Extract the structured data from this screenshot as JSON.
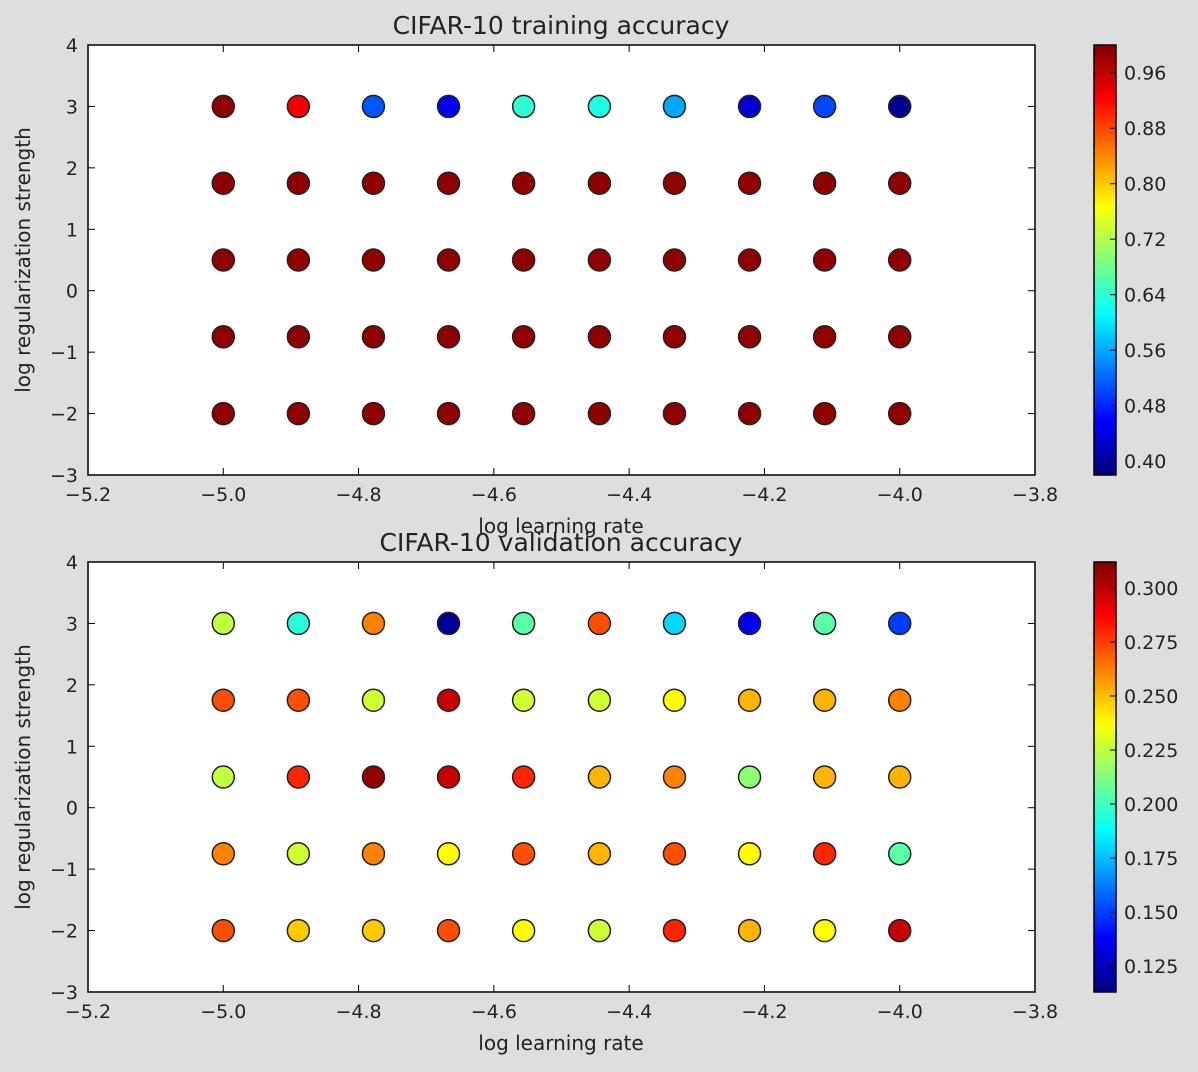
{
  "chart_data": [
    {
      "type": "scatter",
      "title": "CIFAR-10 training accuracy",
      "xlabel": "log learning rate",
      "ylabel": "log regularization strength",
      "xlim": [
        -5.2,
        -3.8
      ],
      "ylim": [
        -3,
        4
      ],
      "xticks": [
        -5.2,
        -5.0,
        -4.8,
        -4.6,
        -4.4,
        -4.2,
        -4.0,
        -3.8
      ],
      "xtick_labels": [
        "−5.2",
        "−5.0",
        "−4.8",
        "−4.6",
        "−4.4",
        "−4.2",
        "−4.0",
        "−3.8"
      ],
      "yticks": [
        -3,
        -2,
        -1,
        0,
        1,
        2,
        3,
        4
      ],
      "ytick_labels": [
        "−3",
        "−2",
        "−1",
        "0",
        "1",
        "2",
        "3",
        "4"
      ],
      "x": [
        -5.0,
        -4.889,
        -4.778,
        -4.667,
        -4.556,
        -4.444,
        -4.333,
        -4.222,
        -4.111,
        -4.0
      ],
      "y": [
        3.0,
        1.75,
        0.5,
        -0.75,
        -2.0
      ],
      "values": [
        [
          0.99,
          0.93,
          0.51,
          0.45,
          0.64,
          0.63,
          0.56,
          0.43,
          0.5,
          0.39
        ],
        [
          0.99,
          0.99,
          0.99,
          0.99,
          0.99,
          0.99,
          0.99,
          0.99,
          0.99,
          0.99
        ],
        [
          0.99,
          0.99,
          0.99,
          0.99,
          0.99,
          0.99,
          0.99,
          0.99,
          0.99,
          0.99
        ],
        [
          0.99,
          0.99,
          0.99,
          0.99,
          0.99,
          0.99,
          0.99,
          0.99,
          0.99,
          0.99
        ],
        [
          0.99,
          0.99,
          0.99,
          0.99,
          0.99,
          0.99,
          0.99,
          0.99,
          0.99,
          0.99
        ]
      ],
      "colorbar": {
        "min": 0.38,
        "max": 1.0,
        "ticks": [
          0.4,
          0.48,
          0.56,
          0.64,
          0.72,
          0.8,
          0.88,
          0.96
        ],
        "tick_labels": [
          "0.40",
          "0.48",
          "0.56",
          "0.64",
          "0.72",
          "0.80",
          "0.88",
          "0.96"
        ]
      },
      "colormap": "jet",
      "grid": false
    },
    {
      "type": "scatter",
      "title": "CIFAR-10 validation accuracy",
      "xlabel": "log learning rate",
      "ylabel": "log regularization strength",
      "xlim": [
        -5.2,
        -3.8
      ],
      "ylim": [
        -3,
        4
      ],
      "xticks": [
        -5.2,
        -5.0,
        -4.8,
        -4.6,
        -4.4,
        -4.2,
        -4.0,
        -3.8
      ],
      "xtick_labels": [
        "−5.2",
        "−5.0",
        "−4.8",
        "−4.6",
        "−4.4",
        "−4.2",
        "−4.0",
        "−3.8"
      ],
      "yticks": [
        -3,
        -2,
        -1,
        0,
        1,
        2,
        3,
        4
      ],
      "ytick_labels": [
        "−3",
        "−2",
        "−1",
        "0",
        "1",
        "2",
        "3",
        "4"
      ],
      "x": [
        -5.0,
        -4.889,
        -4.778,
        -4.667,
        -4.556,
        -4.444,
        -4.333,
        -4.222,
        -4.111,
        -4.0
      ],
      "y": [
        3.0,
        1.75,
        0.5,
        -0.75,
        -2.0
      ],
      "values": [
        [
          0.225,
          0.195,
          0.262,
          0.118,
          0.205,
          0.272,
          0.18,
          0.135,
          0.205,
          0.15
        ],
        [
          0.272,
          0.272,
          0.228,
          0.298,
          0.228,
          0.228,
          0.238,
          0.252,
          0.252,
          0.262
        ],
        [
          0.225,
          0.28,
          0.308,
          0.298,
          0.28,
          0.252,
          0.262,
          0.215,
          0.252,
          0.252
        ],
        [
          0.262,
          0.228,
          0.262,
          0.238,
          0.272,
          0.252,
          0.272,
          0.238,
          0.28,
          0.205
        ],
        [
          0.272,
          0.248,
          0.248,
          0.272,
          0.238,
          0.228,
          0.28,
          0.252,
          0.238,
          0.298
        ]
      ],
      "colorbar": {
        "min": 0.113,
        "max": 0.312,
        "ticks": [
          0.125,
          0.15,
          0.175,
          0.2,
          0.225,
          0.25,
          0.275,
          0.3
        ],
        "tick_labels": [
          "0.125",
          "0.150",
          "0.175",
          "0.200",
          "0.225",
          "0.250",
          "0.275",
          "0.300"
        ]
      },
      "colormap": "jet",
      "grid": false
    }
  ]
}
